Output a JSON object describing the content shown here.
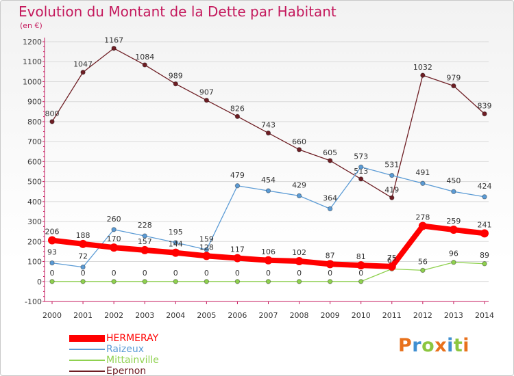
{
  "title": "Evolution du Montant de la Dette par Habitant",
  "subtitle": "(en €)",
  "logo": {
    "text": "Proxiti",
    "letter_colors": [
      "#e8711c",
      "#3f8fd1",
      "#8cc63f",
      "#e8711c",
      "#3f8fd1",
      "#8cc63f",
      "#e8711c"
    ]
  },
  "colors": {
    "title": "#c4185c",
    "axis_text": "#333333",
    "grid": "#d9d9d9",
    "axis": "#c4185c"
  },
  "chart_data": {
    "type": "line",
    "title": "Evolution du Montant de la Dette par Habitant",
    "subtitle": "(en €)",
    "x": [
      "2000",
      "2001",
      "2002",
      "2003",
      "2004",
      "2005",
      "2006",
      "2007",
      "2008",
      "2009",
      "2010",
      "2011",
      "2012",
      "2013",
      "2014"
    ],
    "ylim": [
      -100,
      1200
    ],
    "yticks": [
      -100,
      0,
      100,
      200,
      300,
      400,
      500,
      600,
      700,
      800,
      900,
      1000,
      1100,
      1200
    ],
    "grid": "horizontal",
    "legend_position": "bottom-left",
    "series": [
      {
        "name": "Epernon",
        "color": "#6e1e24",
        "values": [
          800,
          1047,
          1167,
          1084,
          989,
          907,
          826,
          743,
          660,
          605,
          513,
          419,
          1032,
          979,
          839
        ]
      },
      {
        "name": "Raizeux",
        "color": "#5b9bd5",
        "values": [
          93,
          72,
          260,
          228,
          195,
          159,
          479,
          454,
          429,
          364,
          573,
          531,
          491,
          450,
          424
        ]
      },
      {
        "name": "Mittainville",
        "color": "#8fd14f",
        "values": [
          0,
          0,
          0,
          0,
          0,
          0,
          0,
          0,
          0,
          0,
          0,
          63,
          56,
          96,
          89
        ]
      },
      {
        "name": "HERMERAY",
        "color": "#ff0000",
        "values": [
          206,
          188,
          170,
          157,
          144,
          128,
          117,
          106,
          102,
          87,
          81,
          75,
          278,
          259,
          241
        ]
      }
    ],
    "legend": [
      {
        "name": "HERMERAY",
        "color": "#ff0000"
      },
      {
        "name": "Raizeux",
        "color": "#5b9bd5"
      },
      {
        "name": "Mittainville",
        "color": "#8fd14f"
      },
      {
        "name": "Epernon",
        "color": "#6e1e24"
      }
    ]
  }
}
